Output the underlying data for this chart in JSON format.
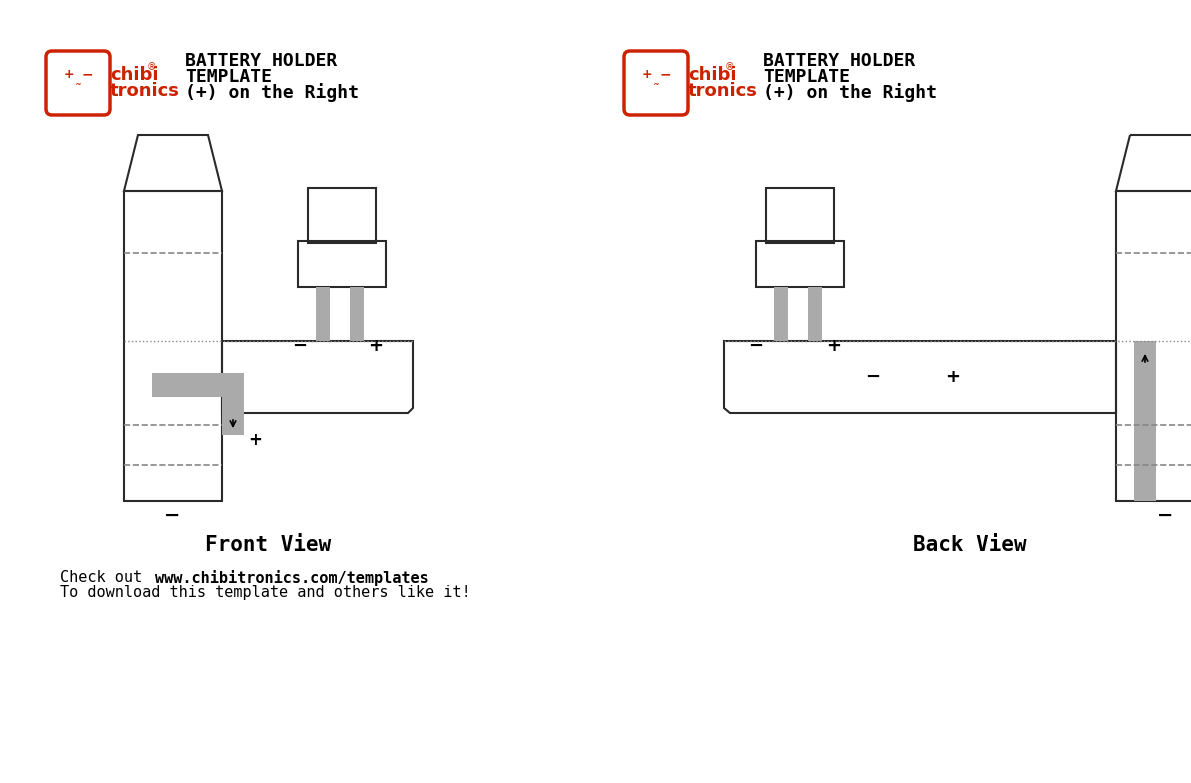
{
  "bg_color": "#ffffff",
  "line_color": "#2a2a2a",
  "gray_color": "#aaaaaa",
  "red_color": "#cc2200",
  "dashed_color": "#888888",
  "title_line1": "BATTERY HOLDER",
  "title_line2": "TEMPLATE",
  "title_line3": "(+) on the Right",
  "front_view_label": "Front View",
  "back_view_label": "Back View",
  "footer_normal": "Check out ",
  "footer_bold": "www.chibitronics.com/templates",
  "footer_line2": "To download this template and others like it!",
  "plus_sign": "+",
  "minus_sign": "−"
}
